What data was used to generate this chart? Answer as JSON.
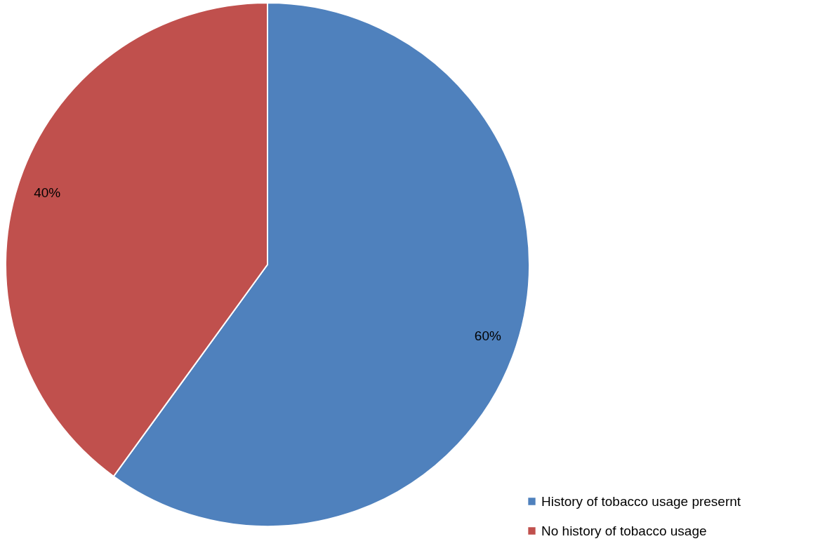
{
  "chart_data": {
    "type": "pie",
    "categories": [
      "History of tobacco usage presernt",
      "No history of tobacco usage"
    ],
    "values": [
      60,
      40
    ],
    "colors": [
      "#4f81bd",
      "#c0504d"
    ],
    "value_labels": [
      "60%",
      "40%"
    ],
    "legend": "bottom right"
  }
}
